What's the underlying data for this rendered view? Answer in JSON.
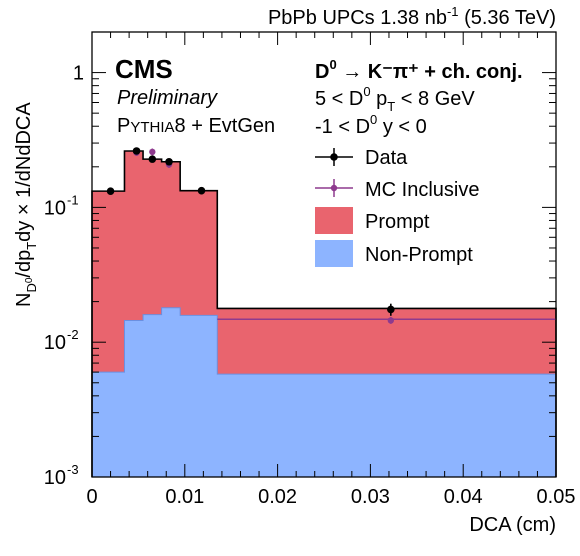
{
  "header": {
    "lumi_text": "PbPb UPCs 1.38 nb",
    "lumi_exp": "-1",
    "energy_text": " (5.36 TeV)"
  },
  "labels": {
    "experiment": "CMS",
    "status": "Preliminary",
    "generator_big": "P",
    "generator_small": "YTHIA",
    "generator_rest": "8 + EvtGen",
    "decay": "D⁰ → K⁻π⁺ + ch. conj.",
    "pt_cut": "5 < D⁰ pT < 8 GeV",
    "y_cut": "-1 < D⁰ y < 0"
  },
  "colors": {
    "prompt": "#e9646e",
    "nonprompt": "#8db4ff",
    "nonprompt_edge": "#6b8fe0",
    "mc": "#8e3a8e",
    "data": "#000000"
  },
  "chart_data": {
    "type": "bar",
    "title": "",
    "xlabel": "DCA (cm)",
    "ylabel": "N_D0/dp_T dy × 1/dNdDCA",
    "xlim": [
      0,
      0.05
    ],
    "ylim": [
      0.001,
      2.0
    ],
    "yscale": "log",
    "legend_position": "top-right",
    "x_ticks": [
      "0",
      "0.01",
      "0.02",
      "0.03",
      "0.04",
      "0.05"
    ],
    "y_ticks": [
      "10⁻³",
      "10⁻²",
      "10⁻¹",
      "1"
    ],
    "bin_edges": [
      0,
      0.0035,
      0.0055,
      0.0075,
      0.0095,
      0.0135,
      0.05
    ],
    "series": [
      {
        "name": "Data",
        "style": "points",
        "x": [
          0.002,
          0.0048,
          0.0065,
          0.0083,
          0.0118,
          0.0322
        ],
        "y": [
          0.132,
          0.262,
          0.228,
          0.218,
          0.133,
          0.0175
        ],
        "yerr": [
          0.008,
          0.012,
          0.013,
          0.012,
          0.008,
          0.0018
        ]
      },
      {
        "name": "MC Inclusive",
        "style": "points",
        "x": [
          0.0048,
          0.0065,
          0.0083,
          0.0322
        ],
        "y": [
          0.255,
          0.258,
          0.208,
          0.0145
        ]
      },
      {
        "name": "Prompt",
        "style": "stacked-area",
        "values": [
          0.132,
          0.262,
          0.228,
          0.218,
          0.133,
          0.0178
        ]
      },
      {
        "name": "Non-Prompt",
        "style": "area",
        "values": [
          0.006,
          0.0145,
          0.016,
          0.018,
          0.0158,
          0.0058
        ]
      }
    ]
  }
}
